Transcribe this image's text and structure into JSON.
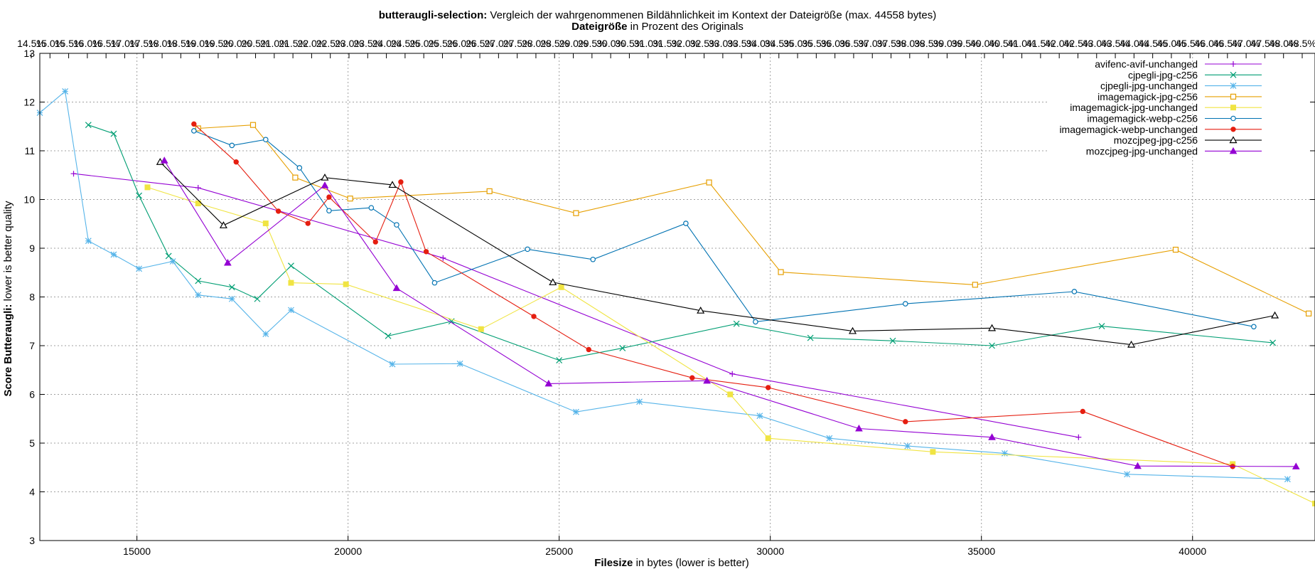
{
  "chart_data": {
    "type": "line",
    "title": {
      "bold": "butteraugli-selection:",
      "rest": " Vergleich der wahrgenommenen Bildähnlichkeit im Kontext der Dateigröße (max. 44558 bytes)"
    },
    "subtitle": {
      "bold": "Dateigröße",
      "rest": " in Prozent des Originals"
    },
    "xlabel": {
      "bold": "Filesize",
      "rest": " in bytes (lower is better)"
    },
    "ylabel": {
      "bold": "Score Butteraugli:",
      "rest": " lower is better quality"
    },
    "xlim": [
      12700,
      42900
    ],
    "ylim": [
      3,
      13
    ],
    "xticks": [
      15000,
      20000,
      25000,
      30000,
      35000,
      40000
    ],
    "yticks": [
      3,
      4,
      5,
      6,
      7,
      8,
      9,
      10,
      11,
      12,
      13
    ],
    "x2ticks": [
      "14.5%",
      "15.0%",
      "15.5%",
      "16.0%",
      "16.5%",
      "17.0%",
      "17.5%",
      "18.0%",
      "18.5%",
      "19.0%",
      "19.5%",
      "20.0%",
      "20.5%",
      "21.0%",
      "21.5%",
      "22.0%",
      "22.5%",
      "23.0%",
      "23.5%",
      "24.0%",
      "24.5%",
      "25.0%",
      "25.5%",
      "26.0%",
      "26.5%",
      "27.0%",
      "27.5%",
      "28.0%",
      "28.5%",
      "29.0%",
      "29.5%",
      "30.0%",
      "30.5%",
      "31.0%",
      "31.5%",
      "32.0%",
      "32.5%",
      "33.0%",
      "33.5%",
      "34.0%",
      "34.5%",
      "35.0%",
      "35.5%",
      "36.0%",
      "36.5%",
      "37.0%",
      "37.5%",
      "38.0%",
      "38.5%",
      "39.0%",
      "39.5%",
      "40.0%",
      "40.5%",
      "41.0%",
      "41.5%",
      "42.0%",
      "42.5%",
      "43.0%",
      "43.5%",
      "44.0%",
      "44.5%",
      "45.0%",
      "45.5%",
      "46.0%",
      "46.5%",
      "47.0%",
      "47.5%",
      "48.0%",
      "48.5%"
    ],
    "grid": true,
    "legend_position": "top-right",
    "series": [
      {
        "name": "avifenc-avif-unchanged",
        "color": "#9400d3",
        "marker": "plus",
        "x": [
          13500,
          16450,
          22250,
          29100,
          37300
        ],
        "y": [
          10.53,
          10.24,
          8.8,
          6.42,
          5.12
        ]
      },
      {
        "name": "cjpegli-jpg-c256",
        "color": "#009e73",
        "marker": "x",
        "x": [
          13850,
          14450,
          15050,
          15750,
          16450,
          17250,
          17850,
          18650,
          20950,
          22450,
          25000,
          26500,
          29200,
          30950,
          32900,
          35250,
          37850,
          41900
        ],
        "y": [
          11.53,
          11.35,
          10.08,
          8.84,
          8.33,
          8.2,
          7.96,
          8.64,
          7.2,
          7.5,
          6.7,
          6.95,
          7.45,
          7.16,
          7.1,
          7.0,
          7.4,
          7.06
        ]
      },
      {
        "name": "cjpegli-jpg-unchanged",
        "color": "#56b4e9",
        "marker": "star",
        "x": [
          12700,
          13300,
          13850,
          14450,
          15050,
          15850,
          16450,
          17250,
          18050,
          18650,
          21050,
          22650,
          25400,
          26900,
          29750,
          31400,
          33250,
          35550,
          38450,
          42250
        ],
        "y": [
          11.78,
          12.22,
          9.15,
          8.87,
          8.58,
          8.73,
          8.04,
          7.96,
          7.24,
          7.73,
          6.62,
          6.63,
          5.64,
          5.85,
          5.56,
          5.1,
          4.94,
          4.79,
          4.36,
          4.26
        ]
      },
      {
        "name": "imagemagick-jpg-c256",
        "color": "#e69f00",
        "marker": "open-square",
        "x": [
          16450,
          17750,
          18750,
          20050,
          23350,
          25400,
          28550,
          30250,
          34850,
          39600,
          42750
        ],
        "y": [
          11.46,
          11.53,
          10.45,
          10.02,
          10.17,
          9.72,
          10.35,
          8.51,
          8.25,
          8.97,
          7.66
        ]
      },
      {
        "name": "imagemagick-jpg-unchanged",
        "color": "#f0e442",
        "marker": "filled-square",
        "x": [
          15250,
          16450,
          18050,
          18650,
          19950,
          23150,
          25050,
          29050,
          29950,
          33850,
          40950,
          42900
        ],
        "y": [
          10.25,
          9.92,
          9.51,
          8.29,
          8.26,
          7.34,
          8.2,
          6.0,
          5.1,
          4.82,
          4.57,
          3.76
        ]
      },
      {
        "name": "imagemagick-webp-c256",
        "color": "#0072b2",
        "marker": "open-circle",
        "x": [
          16350,
          17250,
          18050,
          18850,
          19550,
          20550,
          21150,
          22050,
          24250,
          25800,
          28000,
          29650,
          33200,
          37200,
          41450
        ],
        "y": [
          11.41,
          11.11,
          11.23,
          10.65,
          9.77,
          9.83,
          9.48,
          8.29,
          8.98,
          8.77,
          9.51,
          7.49,
          7.86,
          8.11,
          7.39
        ]
      },
      {
        "name": "imagemagick-webp-unchanged",
        "color": "#e51e10",
        "marker": "filled-circle",
        "x": [
          16350,
          17350,
          18350,
          19050,
          19550,
          20650,
          21250,
          21850,
          24400,
          25700,
          28150,
          29950,
          33200,
          37400,
          40950
        ],
        "y": [
          11.55,
          10.77,
          9.76,
          9.51,
          10.05,
          9.13,
          10.36,
          8.93,
          7.6,
          6.92,
          6.34,
          6.14,
          5.44,
          5.65,
          4.52
        ]
      },
      {
        "name": "mozcjpeg-jpg-c256",
        "color": "#000000",
        "marker": "open-triangle",
        "x": [
          15550,
          17050,
          19450,
          21050,
          24850,
          28350,
          31950,
          35250,
          38550,
          41950
        ],
        "y": [
          10.77,
          9.47,
          10.45,
          10.3,
          8.3,
          7.72,
          7.3,
          7.36,
          7.02,
          7.62
        ]
      },
      {
        "name": "mozcjpeg-jpg-unchanged",
        "color": "#9400d3",
        "marker": "filled-triangle",
        "x": [
          15650,
          17150,
          19450,
          21150,
          24750,
          28500,
          32100,
          35250,
          38700,
          42450
        ],
        "y": [
          10.8,
          8.7,
          10.29,
          8.18,
          6.22,
          6.28,
          5.3,
          5.12,
          4.53,
          4.52
        ]
      }
    ]
  }
}
